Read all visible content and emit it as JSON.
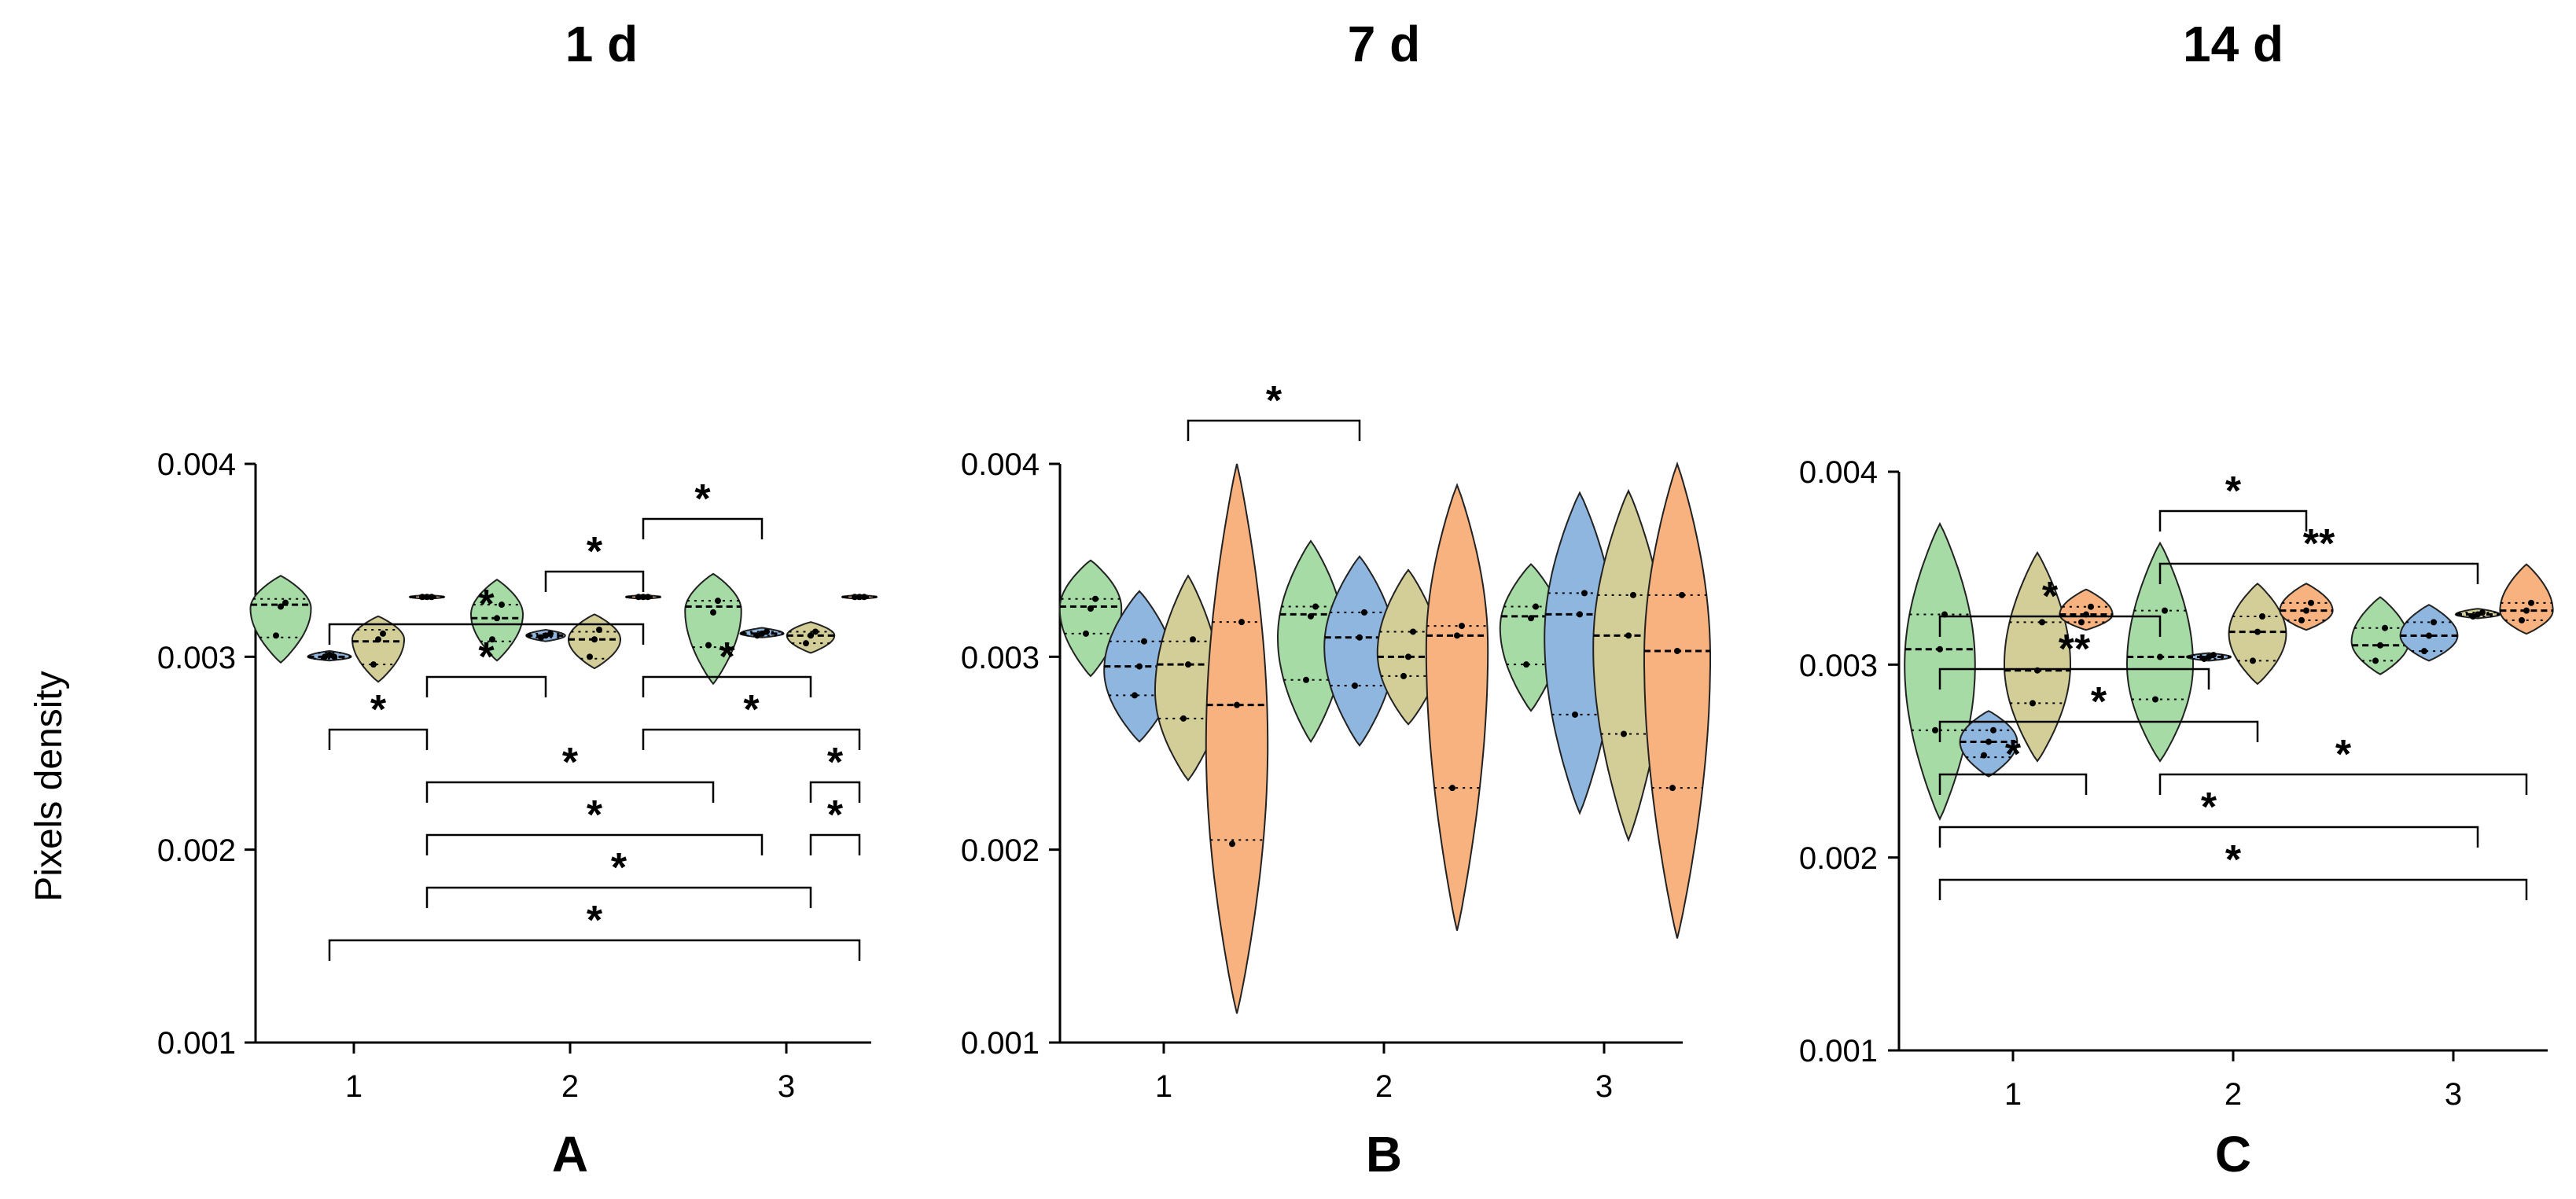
{
  "colors": {
    "1": "#a6dba6",
    "2": "#8fb6df",
    "3": "#d3ce98",
    "4": "#f7b27f"
  },
  "chart_data": [
    {
      "type": "violin",
      "panel": "A",
      "title": "1 d",
      "ylabel": "Pixels density",
      "ylim": [
        0.001,
        0.004
      ],
      "ytick_values": [
        0.001,
        0.002,
        0.003,
        0.004
      ],
      "ytick_labels": [
        "0.001",
        "0.002",
        "0.003",
        "0.004"
      ],
      "categories": [
        "1",
        "2",
        "3"
      ],
      "groups_per_category": 4,
      "violins": [
        {
          "cat": 0,
          "idx": 0,
          "color": "1",
          "min": 0.00297,
          "max": 0.00342,
          "peak": 0.00325,
          "width": 0.14,
          "median": 0.00327,
          "quartiles": [
            0.0031,
            0.0033
          ],
          "points": [
            0.00311,
            0.00326,
            0.00328
          ]
        },
        {
          "cat": 0,
          "idx": 1,
          "color": "2",
          "min": 0.00298,
          "max": 0.00303,
          "peak": 0.003,
          "width": 0.1,
          "median": 0.003,
          "quartiles": [
            0.00299,
            0.00302
          ],
          "points": [
            0.003,
            0.00301,
            0.003
          ]
        },
        {
          "cat": 0,
          "idx": 2,
          "color": "3",
          "min": 0.00287,
          "max": 0.00321,
          "peak": 0.00309,
          "width": 0.12,
          "median": 0.00308,
          "quartiles": [
            0.00296,
            0.00314
          ],
          "points": [
            0.00296,
            0.00309,
            0.00312
          ]
        },
        {
          "cat": 0,
          "idx": 3,
          "color": "4",
          "min": 0.0033,
          "max": 0.00332,
          "peak": 0.00331,
          "width": 0.08,
          "median": 0.00331,
          "quartiles": [
            0.0033,
            0.00332
          ],
          "points": [
            0.00331,
            0.00331,
            0.00331
          ]
        },
        {
          "cat": 1,
          "idx": 0,
          "color": "1",
          "min": 0.00298,
          "max": 0.0034,
          "peak": 0.00322,
          "width": 0.12,
          "median": 0.0032,
          "quartiles": [
            0.00308,
            0.00327
          ],
          "points": [
            0.00309,
            0.0032,
            0.00327
          ]
        },
        {
          "cat": 1,
          "idx": 1,
          "color": "2",
          "min": 0.00308,
          "max": 0.00314,
          "peak": 0.00311,
          "width": 0.09,
          "median": 0.00311,
          "quartiles": [
            0.0031,
            0.00312
          ],
          "points": [
            0.0031,
            0.00311,
            0.00312
          ]
        },
        {
          "cat": 1,
          "idx": 2,
          "color": "3",
          "min": 0.00294,
          "max": 0.00322,
          "peak": 0.00309,
          "width": 0.12,
          "median": 0.00309,
          "quartiles": [
            0.00299,
            0.00313
          ],
          "points": [
            0.003,
            0.00309,
            0.00314
          ]
        },
        {
          "cat": 1,
          "idx": 3,
          "color": "4",
          "min": 0.0033,
          "max": 0.00332,
          "peak": 0.00331,
          "width": 0.08,
          "median": 0.00331,
          "quartiles": [
            0.0033,
            0.00332
          ],
          "points": [
            0.00331,
            0.00331,
            0.00331
          ]
        },
        {
          "cat": 2,
          "idx": 0,
          "color": "1",
          "min": 0.00286,
          "max": 0.00343,
          "peak": 0.00324,
          "width": 0.13,
          "median": 0.00326,
          "quartiles": [
            0.00305,
            0.00329
          ],
          "points": [
            0.00306,
            0.00323,
            0.00329
          ]
        },
        {
          "cat": 2,
          "idx": 1,
          "color": "2",
          "min": 0.0031,
          "max": 0.00315,
          "peak": 0.00312,
          "width": 0.1,
          "median": 0.00312,
          "quartiles": [
            0.00311,
            0.00313
          ],
          "points": [
            0.00311,
            0.00312,
            0.00313
          ]
        },
        {
          "cat": 2,
          "idx": 2,
          "color": "3",
          "min": 0.00302,
          "max": 0.00318,
          "peak": 0.00311,
          "width": 0.11,
          "median": 0.00311,
          "quartiles": [
            0.00307,
            0.00313
          ],
          "points": [
            0.00307,
            0.00311,
            0.00313
          ]
        },
        {
          "cat": 2,
          "idx": 3,
          "color": "4",
          "min": 0.0033,
          "max": 0.00332,
          "peak": 0.00331,
          "width": 0.08,
          "median": 0.00331,
          "quartiles": [
            0.0033,
            0.00332
          ],
          "points": [
            0.00331,
            0.00331,
            0.00331
          ]
        }
      ],
      "brackets": [
        {
          "from": [
            0,
            1
          ],
          "to": [
            2,
            3
          ],
          "label": "*"
        },
        {
          "from": [
            0,
            3
          ],
          "to": [
            2,
            2
          ],
          "label": "*"
        },
        {
          "from": [
            0,
            3
          ],
          "to": [
            2,
            1
          ],
          "label": "*"
        },
        {
          "from": [
            0,
            3
          ],
          "to": [
            2,
            0
          ],
          "label": "*"
        },
        {
          "from": [
            1,
            3
          ],
          "to": [
            2,
            3
          ],
          "label": "*"
        },
        {
          "from": [
            1,
            3
          ],
          "to": [
            2,
            2
          ],
          "label": "*"
        },
        {
          "from": [
            0,
            1
          ],
          "to": [
            1,
            3
          ],
          "label": "*"
        },
        {
          "from": [
            2,
            2
          ],
          "to": [
            2,
            3
          ],
          "label": "*"
        },
        {
          "from": [
            0,
            1
          ],
          "to": [
            0,
            3
          ],
          "label": "*"
        },
        {
          "from": [
            0,
            3
          ],
          "to": [
            1,
            1
          ],
          "label": "*"
        },
        {
          "from": [
            1,
            1
          ],
          "to": [
            1,
            3
          ],
          "label": "*"
        },
        {
          "from": [
            1,
            3
          ],
          "to": [
            2,
            1
          ],
          "label": "*"
        },
        {
          "from": [
            2,
            2
          ],
          "to": [
            2,
            3
          ],
          "label": "*"
        }
      ]
    },
    {
      "type": "violin",
      "panel": "B",
      "title": "7 d",
      "ylim": [
        0.001,
        0.004
      ],
      "ytick_values": [
        0.001,
        0.002,
        0.003,
        0.004
      ],
      "ytick_labels": [
        "0.001",
        "0.002",
        "0.003",
        "0.004"
      ],
      "categories": [
        "1",
        "2",
        "3"
      ],
      "groups_per_category": 4,
      "violins": [
        {
          "cat": 0,
          "idx": 0,
          "color": "1",
          "min": 0.0029,
          "max": 0.0035,
          "peak": 0.00325,
          "width": 0.14,
          "median": 0.00326,
          "quartiles": [
            0.00312,
            0.0033
          ],
          "points": [
            0.00312,
            0.00325,
            0.0033
          ]
        },
        {
          "cat": 0,
          "idx": 1,
          "color": "2",
          "min": 0.00256,
          "max": 0.00334,
          "peak": 0.00293,
          "width": 0.16,
          "median": 0.00295,
          "quartiles": [
            0.0028,
            0.00308
          ],
          "points": [
            0.0028,
            0.00295,
            0.00308
          ]
        },
        {
          "cat": 0,
          "idx": 2,
          "color": "3",
          "min": 0.00236,
          "max": 0.00342,
          "peak": 0.00282,
          "width": 0.15,
          "median": 0.00296,
          "quartiles": [
            0.00268,
            0.00308
          ],
          "points": [
            0.00268,
            0.00296,
            0.00309
          ]
        },
        {
          "cat": 0,
          "idx": 3,
          "color": "4",
          "min": 0.00115,
          "max": 0.004,
          "peak": 0.00255,
          "width": 0.14,
          "median": 0.00275,
          "quartiles": [
            0.00205,
            0.00318
          ],
          "points": [
            0.00203,
            0.00275,
            0.00318
          ]
        },
        {
          "cat": 1,
          "idx": 0,
          "color": "1",
          "min": 0.00256,
          "max": 0.0036,
          "peak": 0.0031,
          "width": 0.15,
          "median": 0.00322,
          "quartiles": [
            0.00288,
            0.00326
          ],
          "points": [
            0.00288,
            0.00321,
            0.00326
          ]
        },
        {
          "cat": 1,
          "idx": 1,
          "color": "2",
          "min": 0.00254,
          "max": 0.00352,
          "peak": 0.00305,
          "width": 0.16,
          "median": 0.0031,
          "quartiles": [
            0.00285,
            0.00323
          ],
          "points": [
            0.00285,
            0.0031,
            0.00323
          ]
        },
        {
          "cat": 1,
          "idx": 2,
          "color": "3",
          "min": 0.00265,
          "max": 0.00345,
          "peak": 0.00302,
          "width": 0.14,
          "median": 0.003,
          "quartiles": [
            0.0029,
            0.00313
          ],
          "points": [
            0.0029,
            0.003,
            0.00313
          ]
        },
        {
          "cat": 1,
          "idx": 3,
          "color": "4",
          "min": 0.00158,
          "max": 0.00389,
          "peak": 0.00305,
          "width": 0.14,
          "median": 0.00311,
          "quartiles": [
            0.00232,
            0.00316
          ],
          "points": [
            0.00232,
            0.00311,
            0.00316
          ]
        },
        {
          "cat": 2,
          "idx": 0,
          "color": "1",
          "min": 0.00272,
          "max": 0.00348,
          "peak": 0.00315,
          "width": 0.14,
          "median": 0.00321,
          "quartiles": [
            0.00296,
            0.00326
          ],
          "points": [
            0.00296,
            0.0032,
            0.00326
          ]
        },
        {
          "cat": 2,
          "idx": 1,
          "color": "2",
          "min": 0.00219,
          "max": 0.00385,
          "peak": 0.0031,
          "width": 0.16,
          "median": 0.00322,
          "quartiles": [
            0.0027,
            0.00333
          ],
          "points": [
            0.0027,
            0.00322,
            0.00333
          ]
        },
        {
          "cat": 2,
          "idx": 2,
          "color": "3",
          "min": 0.00205,
          "max": 0.00386,
          "peak": 0.00305,
          "width": 0.16,
          "median": 0.00311,
          "quartiles": [
            0.0026,
            0.00332
          ],
          "points": [
            0.0026,
            0.00311,
            0.00332
          ]
        },
        {
          "cat": 2,
          "idx": 3,
          "color": "4",
          "min": 0.00154,
          "max": 0.004,
          "peak": 0.003,
          "width": 0.15,
          "median": 0.00303,
          "quartiles": [
            0.00232,
            0.00332
          ],
          "points": [
            0.00232,
            0.00303,
            0.00332
          ]
        }
      ],
      "brackets": [
        {
          "from": [
            0,
            2
          ],
          "to": [
            1,
            1
          ],
          "label": "*"
        }
      ]
    },
    {
      "type": "violin",
      "panel": "C",
      "title": "14 d",
      "ylim": [
        0.001,
        0.004
      ],
      "ytick_values": [
        0.001,
        0.002,
        0.003,
        0.004
      ],
      "ytick_labels": [
        "0.001",
        "0.002",
        "0.003",
        "0.004"
      ],
      "categories": [
        "1",
        "2",
        "3"
      ],
      "groups_per_category": 4,
      "violins": [
        {
          "cat": 0,
          "idx": 0,
          "color": "1",
          "min": 0.0022,
          "max": 0.00373,
          "peak": 0.003,
          "width": 0.16,
          "median": 0.00308,
          "quartiles": [
            0.00266,
            0.00326
          ],
          "points": [
            0.00266,
            0.00308,
            0.00326
          ]
        },
        {
          "cat": 0,
          "idx": 1,
          "color": "2",
          "min": 0.00242,
          "max": 0.00276,
          "peak": 0.0026,
          "width": 0.13,
          "median": 0.0026,
          "quartiles": [
            0.00252,
            0.00266
          ],
          "points": [
            0.00253,
            0.0026,
            0.00266
          ]
        },
        {
          "cat": 0,
          "idx": 2,
          "color": "3",
          "min": 0.0025,
          "max": 0.00358,
          "peak": 0.003,
          "width": 0.15,
          "median": 0.00297,
          "quartiles": [
            0.0028,
            0.00322
          ],
          "points": [
            0.0028,
            0.00297,
            0.00322
          ]
        },
        {
          "cat": 0,
          "idx": 3,
          "color": "4",
          "min": 0.00318,
          "max": 0.00339,
          "peak": 0.00326,
          "width": 0.12,
          "median": 0.00326,
          "quartiles": [
            0.00322,
            0.0033
          ],
          "points": [
            0.00322,
            0.00326,
            0.0033
          ]
        },
        {
          "cat": 1,
          "idx": 0,
          "color": "1",
          "min": 0.0025,
          "max": 0.00363,
          "peak": 0.003,
          "width": 0.15,
          "median": 0.00304,
          "quartiles": [
            0.00282,
            0.00328
          ],
          "points": [
            0.00282,
            0.00304,
            0.00328
          ]
        },
        {
          "cat": 1,
          "idx": 1,
          "color": "2",
          "min": 0.00302,
          "max": 0.00306,
          "peak": 0.00304,
          "width": 0.1,
          "median": 0.00304,
          "quartiles": [
            0.00303,
            0.00305
          ],
          "points": [
            0.00303,
            0.00304,
            0.00305
          ]
        },
        {
          "cat": 1,
          "idx": 2,
          "color": "3",
          "min": 0.0029,
          "max": 0.00342,
          "peak": 0.00316,
          "width": 0.13,
          "median": 0.00317,
          "quartiles": [
            0.00302,
            0.00325
          ],
          "points": [
            0.00302,
            0.00317,
            0.00325
          ]
        },
        {
          "cat": 1,
          "idx": 3,
          "color": "4",
          "min": 0.00318,
          "max": 0.00342,
          "peak": 0.00328,
          "width": 0.12,
          "median": 0.00328,
          "quartiles": [
            0.00323,
            0.00332
          ],
          "points": [
            0.00323,
            0.00328,
            0.00332
          ]
        },
        {
          "cat": 2,
          "idx": 0,
          "color": "1",
          "min": 0.00295,
          "max": 0.00335,
          "peak": 0.00312,
          "width": 0.13,
          "median": 0.0031,
          "quartiles": [
            0.00302,
            0.00319
          ],
          "points": [
            0.00302,
            0.0031,
            0.00319
          ]
        },
        {
          "cat": 2,
          "idx": 1,
          "color": "2",
          "min": 0.00302,
          "max": 0.00331,
          "peak": 0.00315,
          "width": 0.13,
          "median": 0.00315,
          "quartiles": [
            0.00307,
            0.00322
          ],
          "points": [
            0.00307,
            0.00315,
            0.00322
          ]
        },
        {
          "cat": 2,
          "idx": 2,
          "color": "3",
          "min": 0.00324,
          "max": 0.00329,
          "peak": 0.00326,
          "width": 0.1,
          "median": 0.00326,
          "quartiles": [
            0.00325,
            0.00327
          ],
          "points": [
            0.00325,
            0.00326,
            0.00327
          ]
        },
        {
          "cat": 2,
          "idx": 3,
          "color": "4",
          "min": 0.00316,
          "max": 0.00352,
          "peak": 0.00328,
          "width": 0.12,
          "median": 0.00328,
          "quartiles": [
            0.00323,
            0.00332
          ],
          "points": [
            0.00323,
            0.00328,
            0.00332
          ]
        }
      ],
      "brackets": [
        {
          "from": [
            0,
            0
          ],
          "to": [
            2,
            3
          ],
          "label": "*"
        },
        {
          "from": [
            0,
            0
          ],
          "to": [
            2,
            2
          ],
          "label": "*"
        },
        {
          "from": [
            1,
            0
          ],
          "to": [
            2,
            3
          ],
          "label": "*"
        },
        {
          "from": [
            0,
            0
          ],
          "to": [
            1,
            2
          ],
          "label": "*"
        },
        {
          "from": [
            0,
            0
          ],
          "to": [
            1,
            1
          ],
          "label": "**"
        },
        {
          "from": [
            0,
            0
          ],
          "to": [
            1,
            0
          ],
          "label": "*"
        },
        {
          "from": [
            1,
            0
          ],
          "to": [
            2,
            2
          ],
          "label": "**"
        },
        {
          "from": [
            0,
            0
          ],
          "to": [
            0,
            3
          ],
          "label": "*"
        },
        {
          "from": [
            1,
            0
          ],
          "to": [
            1,
            3
          ],
          "label": "*"
        }
      ]
    }
  ]
}
